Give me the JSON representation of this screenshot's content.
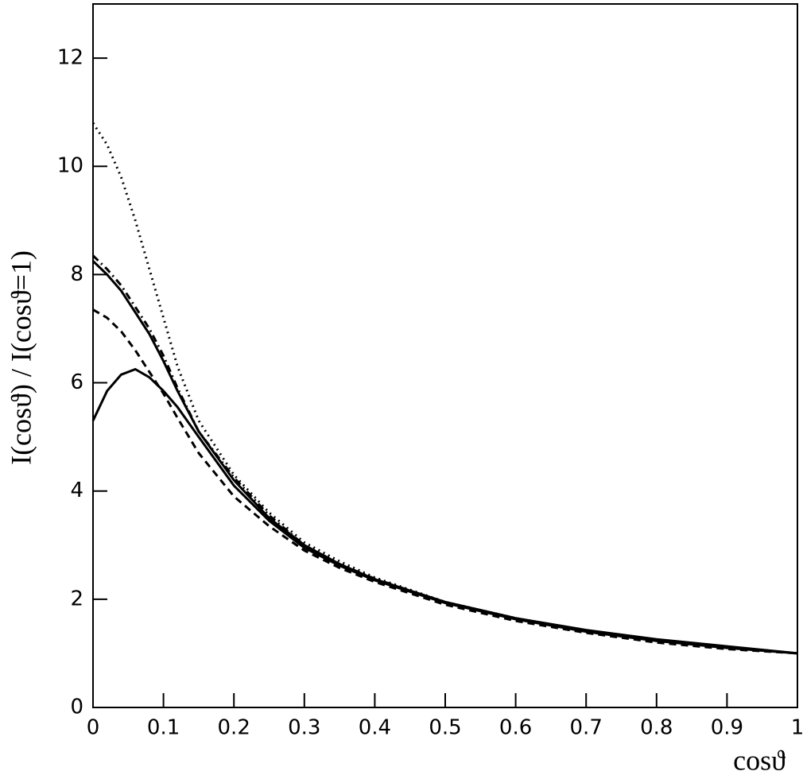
{
  "chart_data": {
    "type": "line",
    "ylabel": "I(cosϑ) / I(cosϑ=1)",
    "xlabel": "cosϑ",
    "x": [
      0,
      0.02,
      0.04,
      0.06,
      0.08,
      0.1,
      0.12,
      0.15,
      0.2,
      0.25,
      0.3,
      0.35,
      0.4,
      0.5,
      0.6,
      0.7,
      0.8,
      0.9,
      1
    ],
    "series": [
      {
        "color": "#000000",
        "dash": "dotted",
        "values": [
          10.8,
          10.4,
          9.8,
          9.0,
          8.1,
          7.2,
          6.3,
          5.3,
          4.3,
          3.6,
          3.05,
          2.7,
          2.4,
          1.95,
          1.65,
          1.42,
          1.25,
          1.12,
          1.0
        ]
      },
      {
        "color": "#000000",
        "dash": "dashdot",
        "values": [
          8.35,
          8.1,
          7.8,
          7.4,
          7.0,
          6.5,
          5.9,
          5.1,
          4.25,
          3.55,
          3.0,
          2.65,
          2.38,
          1.94,
          1.64,
          1.42,
          1.25,
          1.12,
          1.0
        ]
      },
      {
        "color": "#000000",
        "dash": "solid",
        "values": [
          8.25,
          8.0,
          7.7,
          7.3,
          6.9,
          6.4,
          5.85,
          5.1,
          4.2,
          3.5,
          3.0,
          2.65,
          2.37,
          1.95,
          1.65,
          1.43,
          1.26,
          1.13,
          1.0
        ]
      },
      {
        "color": "#000000",
        "dash": "dashed",
        "values": [
          7.35,
          7.2,
          6.95,
          6.6,
          6.2,
          5.8,
          5.35,
          4.7,
          3.9,
          3.35,
          2.9,
          2.58,
          2.32,
          1.9,
          1.6,
          1.38,
          1.2,
          1.08,
          1.0
        ]
      },
      {
        "color": "#000000",
        "dash": "solid",
        "values": [
          5.3,
          5.85,
          6.15,
          6.25,
          6.1,
          5.85,
          5.55,
          5.0,
          4.1,
          3.45,
          2.95,
          2.62,
          2.35,
          1.93,
          1.63,
          1.4,
          1.23,
          1.1,
          1.0
        ]
      }
    ],
    "xlim": [
      0,
      1
    ],
    "xticks": [
      0,
      0.1,
      0.2,
      0.3,
      0.4,
      0.5,
      0.6,
      0.7,
      0.8,
      0.9,
      1
    ],
    "ylim": [
      0,
      13
    ],
    "yticks": [
      0,
      2,
      4,
      6,
      8,
      10,
      12
    ],
    "grid": false
  }
}
